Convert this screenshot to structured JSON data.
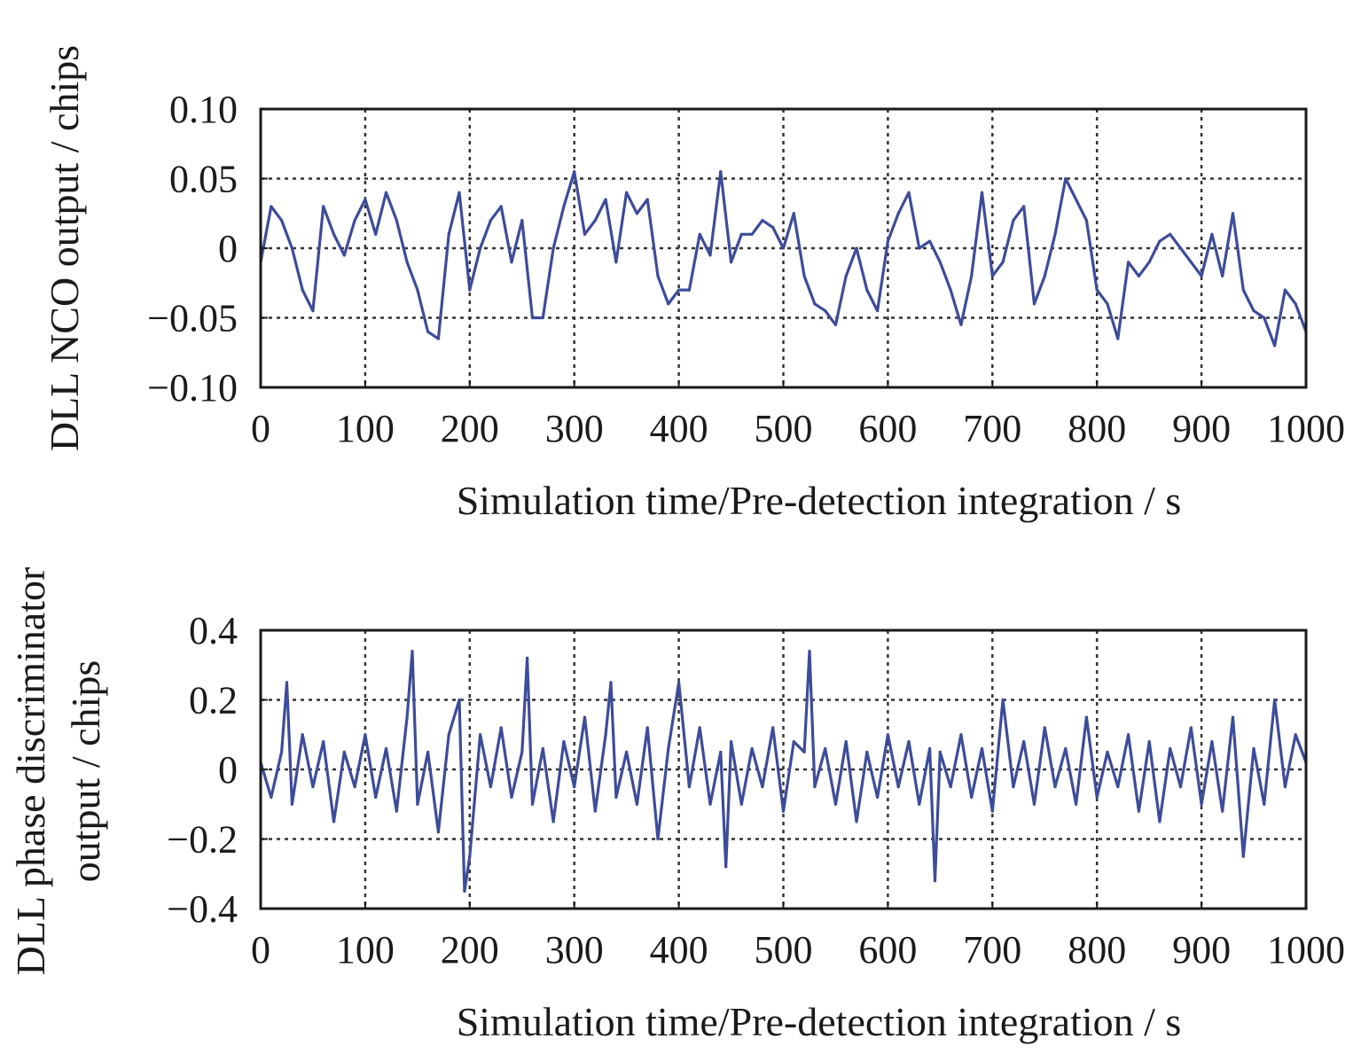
{
  "chart_data": [
    {
      "type": "line",
      "title": "",
      "xlabel": "Simulation time/Pre-detection integration / s",
      "ylabel": [
        "DLL NCO output / chips"
      ],
      "xlim": [
        0,
        1000
      ],
      "ylim": [
        -0.1,
        0.1
      ],
      "xticks": [
        0,
        100,
        200,
        300,
        400,
        500,
        600,
        700,
        800,
        900,
        1000
      ],
      "xtick_labels": [
        "0",
        "100",
        "200",
        "300",
        "400",
        "500",
        "600",
        "700",
        "800",
        "900",
        "1000"
      ],
      "yticks": [
        -0.1,
        -0.05,
        0,
        0.05,
        0.1
      ],
      "ytick_labels": [
        "−0.10",
        "−0.05",
        "0",
        "0.05",
        "0.10"
      ],
      "grid": true,
      "legend": "none",
      "color": "#3d4c9a",
      "series": [
        {
          "x": [
            0,
            10,
            20,
            30,
            40,
            50,
            60,
            70,
            80,
            90,
            100,
            110,
            120,
            130,
            140,
            150,
            160,
            170,
            180,
            190,
            200,
            210,
            220,
            230,
            240,
            250,
            260,
            270,
            280,
            290,
            300,
            310,
            320,
            330,
            340,
            350,
            360,
            370,
            380,
            390,
            400,
            410,
            420,
            430,
            440,
            450,
            460,
            470,
            480,
            490,
            500,
            510,
            520,
            530,
            540,
            550,
            560,
            570,
            580,
            590,
            600,
            610,
            620,
            630,
            640,
            650,
            660,
            670,
            680,
            690,
            700,
            710,
            720,
            730,
            740,
            750,
            760,
            770,
            780,
            790,
            800,
            810,
            820,
            830,
            840,
            850,
            860,
            870,
            880,
            890,
            900,
            910,
            920,
            930,
            940,
            950,
            960,
            970,
            980,
            990,
            1000
          ],
          "y": [
            -0.01,
            0.03,
            0.02,
            0.0,
            -0.03,
            -0.045,
            0.03,
            0.01,
            -0.005,
            0.02,
            0.035,
            0.01,
            0.04,
            0.02,
            -0.01,
            -0.03,
            -0.06,
            -0.065,
            0.01,
            0.04,
            -0.03,
            0.0,
            0.02,
            0.03,
            -0.01,
            0.02,
            -0.05,
            -0.05,
            0.0,
            0.03,
            0.055,
            0.01,
            0.02,
            0.035,
            -0.01,
            0.04,
            0.025,
            0.035,
            -0.02,
            -0.04,
            -0.03,
            -0.03,
            0.01,
            -0.005,
            0.055,
            -0.01,
            0.01,
            0.01,
            0.02,
            0.015,
            0.0,
            0.025,
            -0.02,
            -0.04,
            -0.045,
            -0.055,
            -0.02,
            0.0,
            -0.03,
            -0.045,
            0.005,
            0.025,
            0.04,
            0.0,
            0.005,
            -0.01,
            -0.03,
            -0.055,
            -0.02,
            0.04,
            -0.02,
            -0.01,
            0.02,
            0.03,
            -0.04,
            -0.02,
            0.01,
            0.05,
            0.035,
            0.02,
            -0.03,
            -0.04,
            -0.065,
            -0.01,
            -0.02,
            -0.01,
            0.005,
            0.01,
            0.0,
            -0.01,
            -0.02,
            0.01,
            -0.02,
            0.025,
            -0.03,
            -0.045,
            -0.05,
            -0.07,
            -0.03,
            -0.04,
            -0.06
          ]
        }
      ]
    },
    {
      "type": "line",
      "title": "",
      "xlabel": "Simulation time/Pre-detection integration / s",
      "ylabel": [
        "DLL phase discriminator",
        "output / chips"
      ],
      "xlim": [
        0,
        1000
      ],
      "ylim": [
        -0.4,
        0.4
      ],
      "xticks": [
        0,
        100,
        200,
        300,
        400,
        500,
        600,
        700,
        800,
        900,
        1000
      ],
      "xtick_labels": [
        "0",
        "100",
        "200",
        "300",
        "400",
        "500",
        "600",
        "700",
        "800",
        "900",
        "1000"
      ],
      "yticks": [
        -0.4,
        -0.2,
        0,
        0.2,
        0.4
      ],
      "ytick_labels": [
        "−0.4",
        "−0.2",
        "0",
        "0.2",
        "0.4"
      ],
      "grid": true,
      "legend": "none",
      "color": "#3d4c9a",
      "series": [
        {
          "x": [
            0,
            10,
            20,
            25,
            30,
            40,
            50,
            60,
            70,
            80,
            90,
            100,
            110,
            120,
            130,
            140,
            145,
            150,
            160,
            170,
            180,
            190,
            195,
            200,
            210,
            220,
            230,
            240,
            250,
            255,
            260,
            270,
            280,
            290,
            300,
            310,
            320,
            330,
            335,
            340,
            350,
            360,
            370,
            380,
            390,
            400,
            410,
            420,
            430,
            440,
            445,
            450,
            460,
            470,
            480,
            490,
            500,
            510,
            520,
            525,
            530,
            540,
            550,
            560,
            570,
            580,
            590,
            600,
            610,
            620,
            630,
            640,
            645,
            650,
            660,
            670,
            680,
            690,
            700,
            710,
            720,
            730,
            740,
            750,
            760,
            770,
            780,
            790,
            800,
            810,
            820,
            830,
            840,
            850,
            860,
            870,
            880,
            890,
            900,
            910,
            920,
            930,
            940,
            950,
            960,
            970,
            980,
            990,
            1000
          ],
          "y": [
            0.02,
            -0.08,
            0.05,
            0.25,
            -0.1,
            0.1,
            -0.05,
            0.08,
            -0.15,
            0.05,
            -0.05,
            0.1,
            -0.08,
            0.06,
            -0.12,
            0.15,
            0.34,
            -0.1,
            0.05,
            -0.18,
            0.1,
            0.2,
            -0.35,
            -0.25,
            0.1,
            -0.05,
            0.12,
            -0.08,
            0.05,
            0.32,
            -0.1,
            0.06,
            -0.15,
            0.08,
            -0.05,
            0.15,
            -0.12,
            0.1,
            0.25,
            -0.08,
            0.05,
            -0.1,
            0.12,
            -0.2,
            0.06,
            0.25,
            -0.05,
            0.12,
            -0.1,
            0.05,
            -0.28,
            0.08,
            -0.1,
            0.06,
            -0.05,
            0.12,
            -0.12,
            0.08,
            0.05,
            0.34,
            -0.05,
            0.06,
            -0.1,
            0.08,
            -0.15,
            0.05,
            -0.08,
            0.1,
            -0.05,
            0.08,
            -0.1,
            0.06,
            -0.32,
            0.05,
            -0.05,
            0.1,
            -0.08,
            0.06,
            -0.12,
            0.2,
            -0.05,
            0.08,
            -0.1,
            0.12,
            -0.05,
            0.06,
            -0.1,
            0.15,
            -0.08,
            0.05,
            -0.05,
            0.1,
            -0.12,
            0.08,
            -0.15,
            0.06,
            -0.05,
            0.12,
            -0.1,
            0.08,
            -0.12,
            0.15,
            -0.25,
            0.06,
            -0.1,
            0.2,
            -0.05,
            0.1,
            0.02
          ]
        }
      ]
    }
  ]
}
